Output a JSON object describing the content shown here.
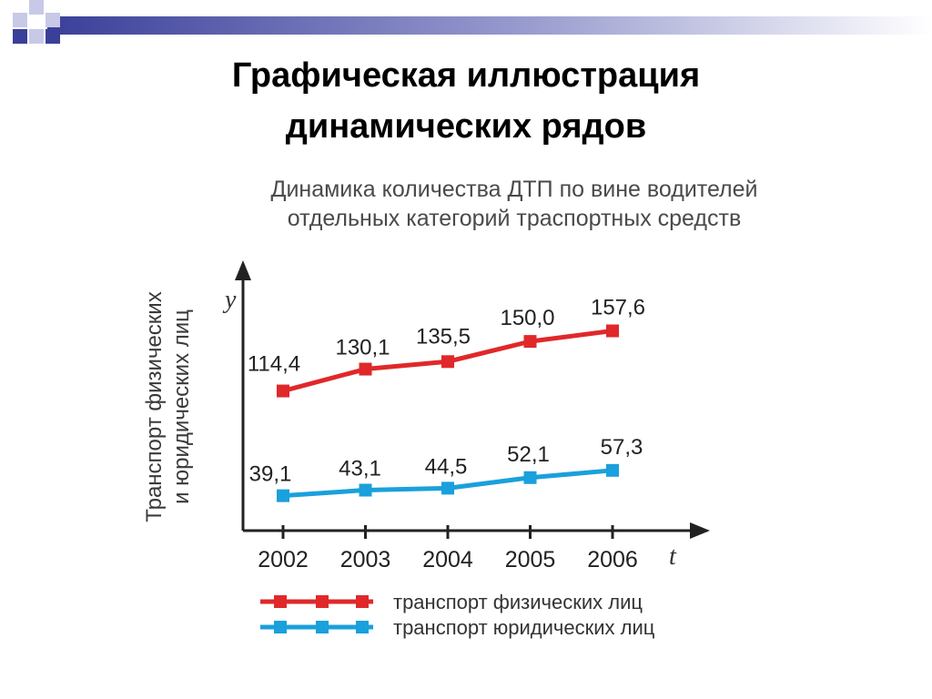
{
  "slide": {
    "title_line1": "Графическая иллюстрация",
    "title_line2": "динамических рядов"
  },
  "colors": {
    "series_1": "#e0282a",
    "series_2": "#1aa0dc",
    "deco_dark": "#3a3f99",
    "deco_light": "#c7c9e6"
  },
  "chart_data": {
    "type": "line",
    "title_line1": "Динамика количества ДТП по вине водителей",
    "title_line2": "отдельных категорий траспортных средств",
    "xlabel": "t",
    "ylabel": "y",
    "ylabel_rotated_line1": "Транспорт физических",
    "ylabel_rotated_line2": "и юридических лиц",
    "categories": [
      "2002",
      "2003",
      "2004",
      "2005",
      "2006"
    ],
    "series": [
      {
        "name": "транспорт физических лиц",
        "values": [
          114.4,
          130.1,
          135.5,
          150.0,
          157.6
        ],
        "labels": [
          "114,4",
          "130,1",
          "135,5",
          "150,0",
          "157,6"
        ]
      },
      {
        "name": "транспорт юридических лиц",
        "values": [
          39.1,
          43.1,
          44.5,
          52.1,
          57.3
        ],
        "labels": [
          "39,1",
          "43,1",
          "44,5",
          "52,1",
          "57,3"
        ]
      }
    ],
    "grid": false,
    "legend_position": "bottom"
  }
}
